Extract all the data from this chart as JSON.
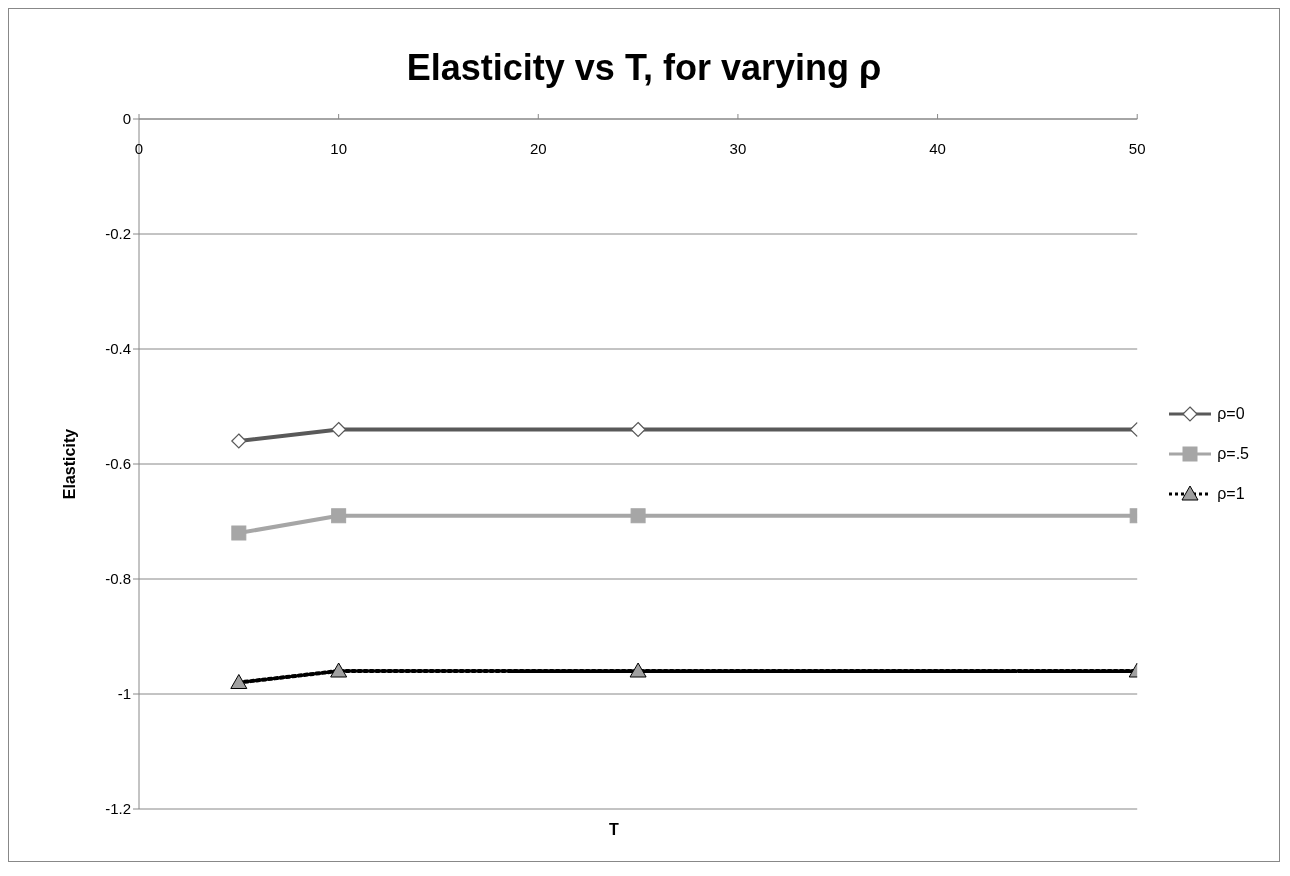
{
  "chart_data": {
    "type": "line",
    "title": "Elasticity vs T, for varying ρ",
    "xlabel": "T",
    "ylabel": "Elasticity",
    "x": [
      5,
      10,
      25,
      50
    ],
    "series": [
      {
        "name": "ρ=0",
        "color": "#595959",
        "values": [
          -0.56,
          -0.54,
          -0.54,
          -0.54
        ],
        "marker": "diamond",
        "line_style": "solid"
      },
      {
        "name": "ρ=.5",
        "color": "#a6a6a6",
        "values": [
          -0.72,
          -0.69,
          -0.69,
          -0.69
        ],
        "marker": "square",
        "line_style": "solid"
      },
      {
        "name": "ρ=1",
        "color": "#000000",
        "values": [
          -0.98,
          -0.96,
          -0.96,
          -0.96
        ],
        "marker": "triangle",
        "line_style": "dotted"
      }
    ],
    "xlim": [
      0,
      50
    ],
    "xticks": [
      0,
      10,
      20,
      30,
      40,
      50
    ],
    "ylim": [
      -1.2,
      0
    ],
    "yticks": [
      0,
      -0.2,
      -0.4,
      -0.6,
      -0.8,
      -1,
      -1.2
    ],
    "grid": "y",
    "legend": "right"
  }
}
